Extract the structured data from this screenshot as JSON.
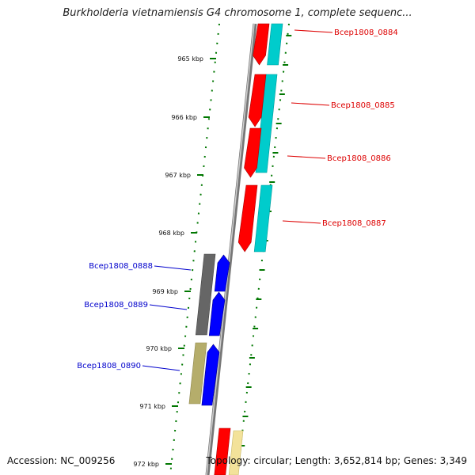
{
  "title": "Burkholderia vietnamiensis G4 chromosome 1, complete sequenc...",
  "accession": "Accession: NC_009256",
  "topology": "Topology: circular; Length: 3,652,814 bp; Genes: 3,349",
  "colors": {
    "forward_cds": "#ff0000",
    "forward_track": "#00cccc",
    "reverse_cds": "#0000ff",
    "reverse_track_gray": "#666666",
    "reverse_track_olive": "#b5ad6b",
    "tick": "#007700",
    "backbone": "#888888"
  },
  "scale": {
    "ticks": [
      {
        "label": "965 kbp"
      },
      {
        "label": "966 kbp"
      },
      {
        "label": "967 kbp"
      },
      {
        "label": "968 kbp"
      },
      {
        "label": "969 kbp"
      },
      {
        "label": "970 kbp"
      },
      {
        "label": "971 kbp"
      },
      {
        "label": "972 kbp"
      }
    ]
  },
  "genes": [
    {
      "label": "Bcep1808_0884",
      "strand": "forward"
    },
    {
      "label": "Bcep1808_0885",
      "strand": "forward"
    },
    {
      "label": "Bcep1808_0886",
      "strand": "forward"
    },
    {
      "label": "Bcep1808_0887",
      "strand": "forward"
    },
    {
      "label": "Bcep1808_0888",
      "strand": "reverse"
    },
    {
      "label": "Bcep1808_0889",
      "strand": "reverse"
    },
    {
      "label": "Bcep1808_0890",
      "strand": "reverse"
    }
  ]
}
